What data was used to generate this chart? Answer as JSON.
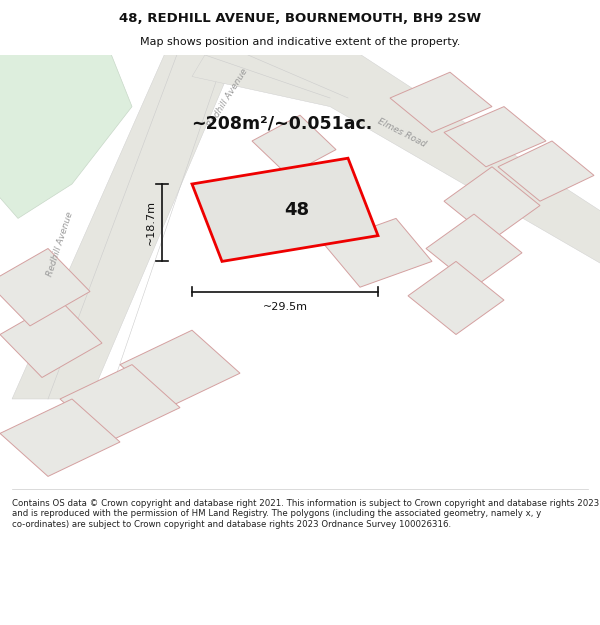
{
  "title": "48, REDHILL AVENUE, BOURNEMOUTH, BH9 2SW",
  "subtitle": "Map shows position and indicative extent of the property.",
  "area_text": "~208m²/~0.051ac.",
  "label_48": "48",
  "dim_width": "~29.5m",
  "dim_height": "~18.7m",
  "footer": "Contains OS data © Crown copyright and database right 2021. This information is subject to Crown copyright and database rights 2023 and is reproduced with the permission of HM Land Registry. The polygons (including the associated geometry, namely x, y co-ordinates) are subject to Crown copyright and database rights 2023 Ordnance Survey 100026316.",
  "bg_map": "#f2f2ee",
  "green_color": "#ddeedd",
  "road_color": "#e6e6e0",
  "plot_face": "#e8e8e4",
  "plot_edge": "#d4a0a0",
  "highlight_color": "#ee0000",
  "dim_color": "#111111",
  "street_color": "#999999",
  "title_color": "#111111",
  "footer_color": "#222222",
  "white": "#ffffff"
}
